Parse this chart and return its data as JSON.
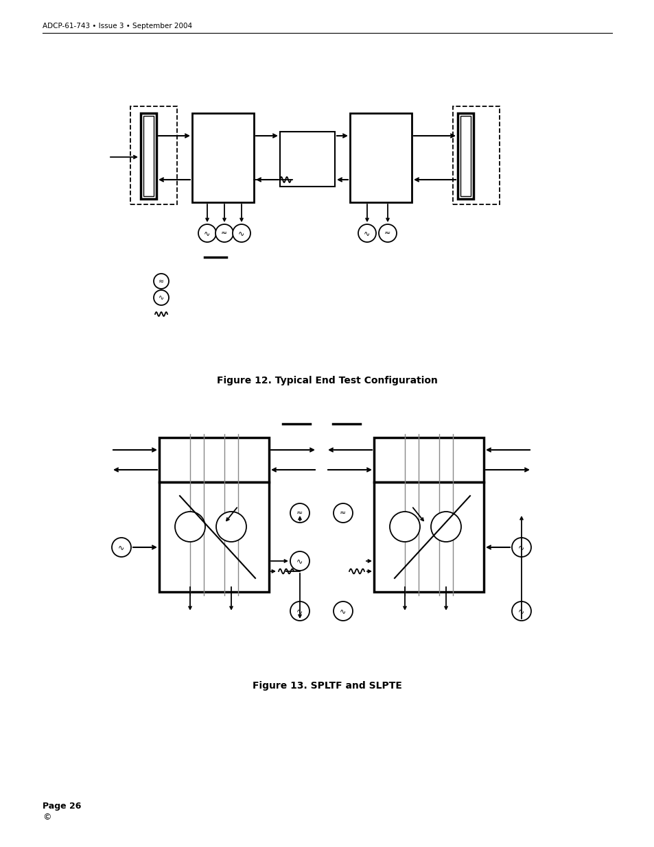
{
  "header_text": "ADCP-61-743 • Issue 3 • September 2004",
  "fig12_title": "Figure 12. Typical End Test Configuration",
  "fig13_title": "Figure 13. SPLTF and SLPTE",
  "footer_text": "Page 26",
  "footer_copyright": "©",
  "bg_color": "#ffffff",
  "line_color": "#000000"
}
